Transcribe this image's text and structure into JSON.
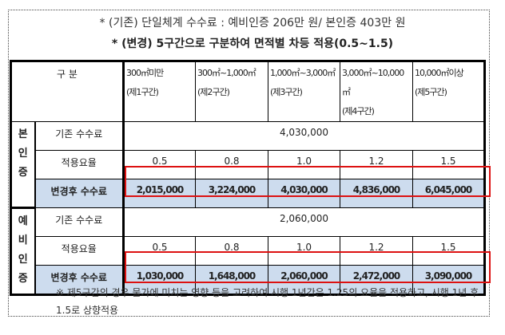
{
  "header": {
    "line1": "* (기존) 단일체계 수수료 : 예비인증 206만 원/ 본인증 403만 원",
    "line2": "* (변경) 5구간으로 구분하여 면적별 차등 적용(0.5~1.5)"
  },
  "table": {
    "corner": "구 분",
    "columns": [
      {
        "range": "300㎡미만",
        "tier": "(제1구간)"
      },
      {
        "range": "300㎡~1,000㎡",
        "tier": "(제2구간)"
      },
      {
        "range": "1,000㎡~3,000㎡",
        "tier": "(제3구간)"
      },
      {
        "range": "3,000㎡~10,000㎡",
        "tier": "(제4구간)"
      },
      {
        "range": "10,000㎡이상",
        "tier": "(제5구간)"
      }
    ],
    "groups": [
      {
        "name": "본 인 증",
        "base_label": "기존 수수료",
        "base_value": "4,030,000",
        "rate_label": "적용요율",
        "rates": [
          "0.5",
          "0.8",
          "1.0",
          "1.2",
          "1.5"
        ],
        "new_label": "변경후 수수료",
        "new_fees": [
          "2,015,000",
          "3,224,000",
          "4,030,000",
          "4,836,000",
          "6,045,000"
        ]
      },
      {
        "name": "예비 인증",
        "base_label": "기존 수수료",
        "base_value": "2,060,000",
        "rate_label": "적용요율",
        "rates": [
          "0.5",
          "0.8",
          "1.0",
          "1.2",
          "1.5"
        ],
        "new_label": "변경후 수수료",
        "new_fees": [
          "1,030,000",
          "1,648,000",
          "2,060,000",
          "2,472,000",
          "3,090,000"
        ]
      }
    ]
  },
  "note": "※ 제5구간의 경우 물가에 미치는 영향 등을 고려하여 시행 1년간은 1.25의 요율을 적용하고, 시행 1년 후 1.5로 상향적용",
  "colors": {
    "highlight": "#cddcee",
    "red_box": "#dd1111"
  }
}
